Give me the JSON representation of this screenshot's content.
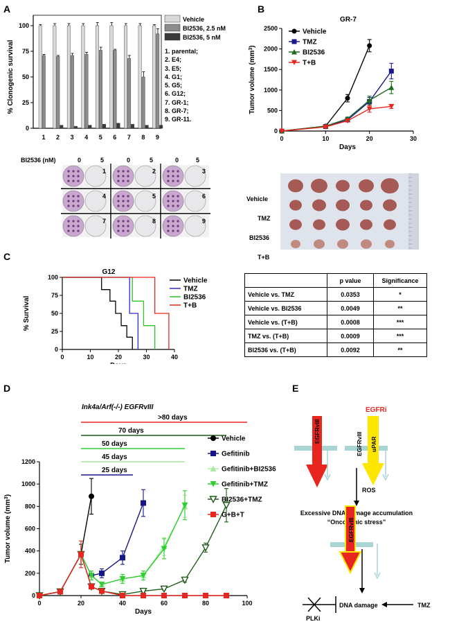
{
  "panels": {
    "a": {
      "label": "A",
      "ylabel": "% Clonogenic survival",
      "legend": [
        "Vehicle",
        "BI2536, 2.5 nM",
        "BI2536, 5 nM"
      ],
      "cell_lines": [
        "1. parental;",
        "2. E4;",
        "3. E5;",
        "4. G1;",
        "5. G5;",
        "6. G12;",
        "7. GR-1;",
        "8. GR-7;",
        "9. GR-11."
      ],
      "plate_header": {
        "label": "BI2536 (nM)",
        "doses": [
          "0",
          "5",
          "0",
          "5",
          "0",
          "5"
        ]
      },
      "plate_numbers": [
        "1",
        "2",
        "3",
        "4",
        "5",
        "6",
        "7",
        "8",
        "9"
      ]
    },
    "b": {
      "label": "B",
      "tumor_rows": [
        "Vehicle",
        "TMZ",
        "BI2536",
        "T+B"
      ]
    },
    "c": {
      "label": "C",
      "table": {
        "headers": [
          "",
          "p value",
          "Significance"
        ],
        "rows": [
          [
            "Vehicle vs. TMZ",
            "0.0353",
            "*"
          ],
          [
            "Vehicle vs. BI2536",
            "0.0049",
            "**"
          ],
          [
            "Vehicle vs. (T+B)",
            "0.0008",
            "***"
          ],
          [
            "TMZ vs. (T+B)",
            "0.0009",
            "***"
          ],
          [
            "BI2536 vs. (T+B)",
            "0.0092",
            "**"
          ]
        ]
      }
    },
    "d": {
      "label": "D",
      "subtitle": "Ink4a/Arf(-/-) EGFRvIII",
      "duration_bars": [
        {
          "label": ">80 days",
          "color": "#e8251f"
        },
        {
          "label": "70 days",
          "color": "#1f5a18"
        },
        {
          "label": "50 days",
          "color": "#2fcf2f"
        },
        {
          "label": "45 days",
          "color": "#a8eaa0"
        },
        {
          "label": "25 days",
          "color": "#16168a"
        }
      ]
    },
    "e": {
      "label": "E",
      "egfri": "EGFRi",
      "receptor1": "EGFRvIII",
      "receptor2a": "EGFRvIII",
      "receptor2b": "uPAR",
      "ros": "ROS",
      "damage_line1": "Excessive DNA damage accumulation",
      "damage_line2": "“Oncogenic stress”",
      "receptor3": "EGFRvIII",
      "dna_damage": "DNA damage",
      "tmz": "TMZ",
      "plki": "PLKi"
    }
  },
  "chart_data": [
    {
      "id": "A",
      "type": "bar",
      "title": "",
      "ylabel": "% Clonogenic survival",
      "xlabel": "",
      "ylim": [
        0,
        100
      ],
      "yticks": [
        0,
        25,
        50,
        75,
        100
      ],
      "categories": [
        "1",
        "2",
        "3",
        "4",
        "5",
        "6",
        "7",
        "8",
        "9"
      ],
      "series": [
        {
          "name": "Vehicle",
          "color": "#d9d9d9",
          "values": [
            100,
            100,
            100,
            100,
            100,
            100,
            100,
            100,
            100
          ],
          "errors": [
            1,
            2,
            2,
            2,
            3,
            3,
            2,
            2,
            1
          ]
        },
        {
          "name": "BI2536, 2.5 nM",
          "color": "#8c8c8c",
          "values": [
            71,
            70,
            71,
            72,
            76,
            76,
            68,
            50,
            92
          ],
          "errors": [
            1,
            1,
            2,
            2,
            3,
            1,
            3,
            5,
            5
          ]
        },
        {
          "name": "BI2536, 5 nM",
          "color": "#3a3a3a",
          "values": [
            0,
            3,
            2,
            3,
            4,
            5,
            4,
            3,
            3
          ],
          "errors": [
            0,
            0,
            0,
            0,
            0,
            0,
            0,
            0,
            0
          ]
        }
      ]
    },
    {
      "id": "B",
      "type": "line",
      "title": "GR-7",
      "xlabel": "Days",
      "ylabel": "Tumor volume (mm3)",
      "xlim": [
        0,
        30
      ],
      "ylim": [
        0,
        2500
      ],
      "xticks": [
        0,
        10,
        20,
        30
      ],
      "yticks": [
        0,
        500,
        1000,
        1500,
        2000,
        2500
      ],
      "series": [
        {
          "name": "Vehicle",
          "color": "#000000",
          "marker": "circle",
          "x": [
            0,
            10,
            15,
            20
          ],
          "y": [
            0,
            120,
            800,
            2080
          ],
          "err": [
            0,
            30,
            90,
            150
          ]
        },
        {
          "name": "TMZ",
          "color": "#1a1a8c",
          "marker": "square",
          "x": [
            0,
            10,
            15,
            20,
            25
          ],
          "y": [
            0,
            110,
            270,
            720,
            1460
          ],
          "err": [
            0,
            20,
            40,
            100,
            190
          ]
        },
        {
          "name": "BI2536",
          "color": "#1d6b1d",
          "marker": "triangle-up",
          "x": [
            0,
            10,
            15,
            20,
            25
          ],
          "y": [
            0,
            120,
            300,
            750,
            1060
          ],
          "err": [
            0,
            20,
            40,
            100,
            150
          ]
        },
        {
          "name": "T+B",
          "color": "#e8251f",
          "marker": "triangle-down",
          "x": [
            0,
            10,
            15,
            20,
            25
          ],
          "y": [
            0,
            100,
            250,
            540,
            600
          ],
          "err": [
            0,
            20,
            30,
            80,
            50
          ]
        }
      ]
    },
    {
      "id": "C",
      "type": "line",
      "title": "G12",
      "xlabel": "Days",
      "ylabel": "% Survival",
      "xlim": [
        0,
        40
      ],
      "ylim": [
        0,
        100
      ],
      "xticks": [
        0,
        10,
        20,
        30,
        40
      ],
      "yticks": [
        0,
        25,
        50,
        75,
        100
      ],
      "series": [
        {
          "name": "Vehicle",
          "color": "#000000",
          "steps": [
            [
              0,
              100
            ],
            [
              14,
              100
            ],
            [
              14,
              83
            ],
            [
              17,
              83
            ],
            [
              17,
              67
            ],
            [
              19,
              67
            ],
            [
              19,
              50
            ],
            [
              21,
              50
            ],
            [
              21,
              33
            ],
            [
              23,
              33
            ],
            [
              23,
              17
            ],
            [
              25,
              17
            ],
            [
              25,
              0
            ]
          ]
        },
        {
          "name": "TMZ",
          "color": "#2a2ad6",
          "steps": [
            [
              0,
              100
            ],
            [
              24,
              100
            ],
            [
              24,
              50
            ],
            [
              27,
              50
            ],
            [
              27,
              0
            ]
          ]
        },
        {
          "name": "BI2536",
          "color": "#2fbf2f",
          "steps": [
            [
              0,
              100
            ],
            [
              25,
              100
            ],
            [
              25,
              67
            ],
            [
              29,
              67
            ],
            [
              29,
              33
            ],
            [
              33,
              33
            ],
            [
              33,
              0
            ]
          ]
        },
        {
          "name": "T+B",
          "color": "#e8251f",
          "steps": [
            [
              0,
              100
            ],
            [
              33,
              100
            ],
            [
              33,
              50
            ],
            [
              38,
              50
            ],
            [
              38,
              0
            ]
          ]
        }
      ]
    },
    {
      "id": "D",
      "type": "line",
      "title": "",
      "xlabel": "Days",
      "ylabel": "Tumor volume (mm3)",
      "xlim": [
        0,
        100
      ],
      "ylim": [
        0,
        1200
      ],
      "xticks": [
        0,
        20,
        40,
        60,
        80,
        100
      ],
      "yticks": [
        0,
        200,
        400,
        600,
        800,
        1000,
        1200
      ],
      "series": [
        {
          "name": "Vehicle",
          "color": "#000000",
          "marker": "circle",
          "x": [
            0,
            10,
            20,
            25
          ],
          "y": [
            0,
            35,
            370,
            890
          ],
          "err": [
            0,
            10,
            90,
            160
          ]
        },
        {
          "name": "Gefitinib",
          "color": "#16168a",
          "marker": "square",
          "x": [
            0,
            10,
            20,
            25,
            30,
            40,
            50
          ],
          "y": [
            0,
            35,
            370,
            180,
            200,
            340,
            830
          ],
          "err": [
            0,
            10,
            90,
            40,
            40,
            60,
            120
          ]
        },
        {
          "name": "Gefitinib+BI2536",
          "color": "#a8eaa0",
          "marker": "triangle-up",
          "x": [
            0,
            10,
            20,
            25,
            30,
            40,
            50,
            60,
            70
          ],
          "y": [
            0,
            35,
            370,
            180,
            100,
            150,
            180,
            440,
            800
          ],
          "err": [
            0,
            10,
            90,
            40,
            20,
            40,
            40,
            80,
            100
          ]
        },
        {
          "name": "Gefitinib+TMZ",
          "color": "#2fcf2f",
          "marker": "triangle-down",
          "x": [
            0,
            10,
            20,
            25,
            30,
            40,
            50,
            60,
            70
          ],
          "y": [
            0,
            35,
            370,
            180,
            100,
            150,
            180,
            420,
            810
          ],
          "err": [
            0,
            10,
            90,
            40,
            20,
            40,
            40,
            90,
            130
          ]
        },
        {
          "name": "BI2536+TMZ",
          "color": "#1f5a18",
          "marker": "triangle-down-open",
          "x": [
            0,
            10,
            20,
            25,
            30,
            40,
            50,
            60,
            70,
            80,
            90
          ],
          "y": [
            0,
            35,
            370,
            80,
            40,
            10,
            40,
            60,
            140,
            430,
            810
          ],
          "err": [
            0,
            10,
            90,
            20,
            10,
            5,
            10,
            10,
            20,
            40,
            150
          ]
        },
        {
          "name": "G+B+T",
          "color": "#e8251f",
          "marker": "square",
          "x": [
            0,
            10,
            20,
            25,
            30,
            40,
            50,
            60,
            70,
            80,
            90
          ],
          "y": [
            0,
            35,
            370,
            80,
            40,
            0,
            0,
            0,
            0,
            0,
            0
          ],
          "err": [
            0,
            10,
            120,
            20,
            10,
            0,
            0,
            0,
            0,
            0,
            0
          ]
        }
      ]
    }
  ]
}
